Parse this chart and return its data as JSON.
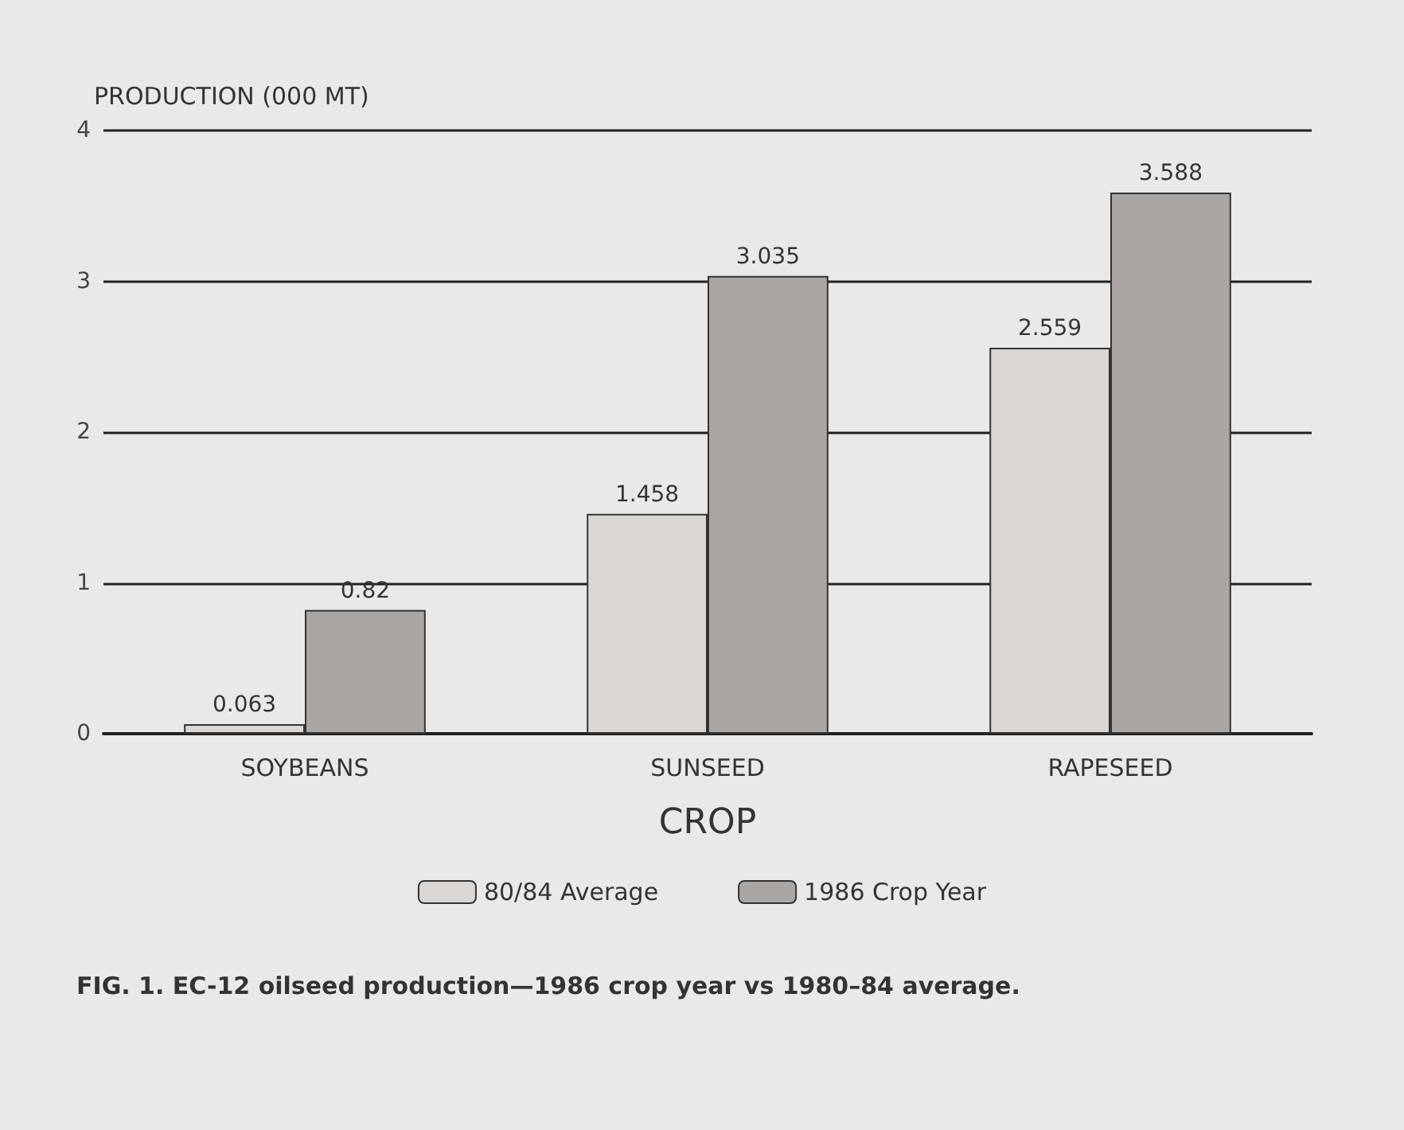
{
  "chart_data": {
    "type": "bar",
    "ylabel": "PRODUCTION (000 MT)",
    "xlabel": "CROP",
    "categories": [
      "SOYBEANS",
      "SUNSEED",
      "RAPESEED"
    ],
    "series": [
      {
        "name": "80/84 Average",
        "color": "#d9d6d4",
        "values": [
          0.063,
          1.458,
          2.559
        ]
      },
      {
        "name": "1986 Crop Year",
        "color": "#a9a6a4",
        "values": [
          0.82,
          3.035,
          3.588
        ]
      }
    ],
    "ylim": [
      0,
      4
    ],
    "yticks": [
      0,
      1,
      2,
      3,
      4
    ],
    "grid": "y",
    "legend": "bottom",
    "data_labels": true,
    "annotations": [
      "FIG. 1. EC-12 oilseed production—1986 crop year vs 1980–84 average."
    ]
  }
}
